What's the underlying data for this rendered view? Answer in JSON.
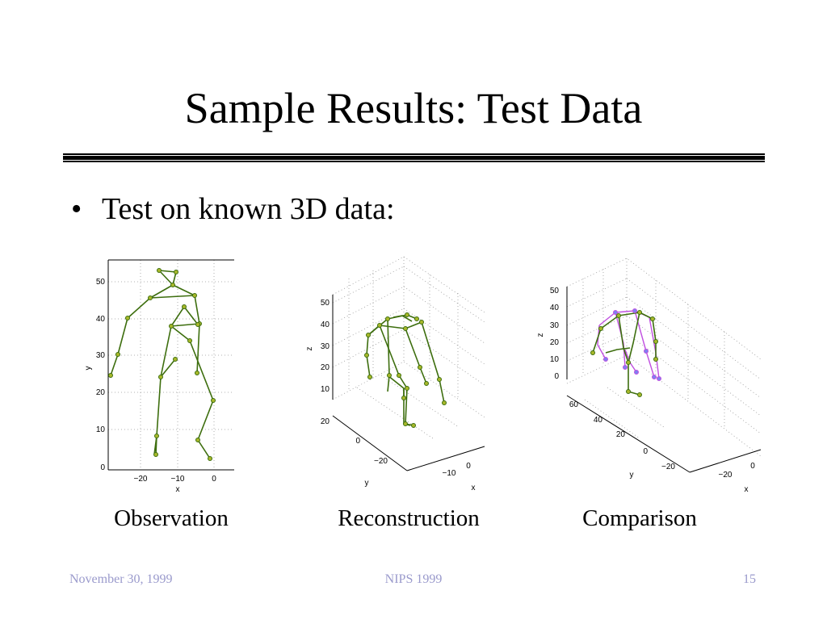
{
  "slide": {
    "title": "Sample Results:  Test Data",
    "bullet": "Test on known 3D data:",
    "bullet_symbol": "•"
  },
  "figures": {
    "observation": {
      "caption": "Observation",
      "y_label": "y",
      "x_label": "x",
      "y_ticks": [
        "50",
        "40",
        "30",
        "20",
        "10",
        "0"
      ],
      "x_ticks": [
        "−20",
        "−10",
        "0"
      ]
    },
    "reconstruction": {
      "caption": "Reconstruction",
      "z_label": "z",
      "y_label": "y",
      "x_label": "x",
      "z_ticks": [
        "50",
        "40",
        "30",
        "20",
        "10"
      ],
      "y_ticks": [
        "20",
        "0",
        "−20"
      ],
      "x_ticks": [
        "−10",
        "0"
      ]
    },
    "comparison": {
      "caption": "Comparison",
      "z_label": "z",
      "y_label": "y",
      "x_label": "x",
      "z_ticks": [
        "50",
        "40",
        "30",
        "20",
        "10",
        "0"
      ],
      "y_ticks": [
        "60",
        "40",
        "20",
        "0",
        "−20"
      ],
      "x_ticks": [
        "−20",
        "0"
      ]
    }
  },
  "footer": {
    "date": "November 30, 1999",
    "venue": "NIPS 1999",
    "page": "15"
  },
  "colors": {
    "skeleton": "#3d6e0e",
    "joint": "#a8b82a",
    "truth": "#c050e0",
    "truth_joint": "#8080f0",
    "footer": "#9a9acc"
  }
}
